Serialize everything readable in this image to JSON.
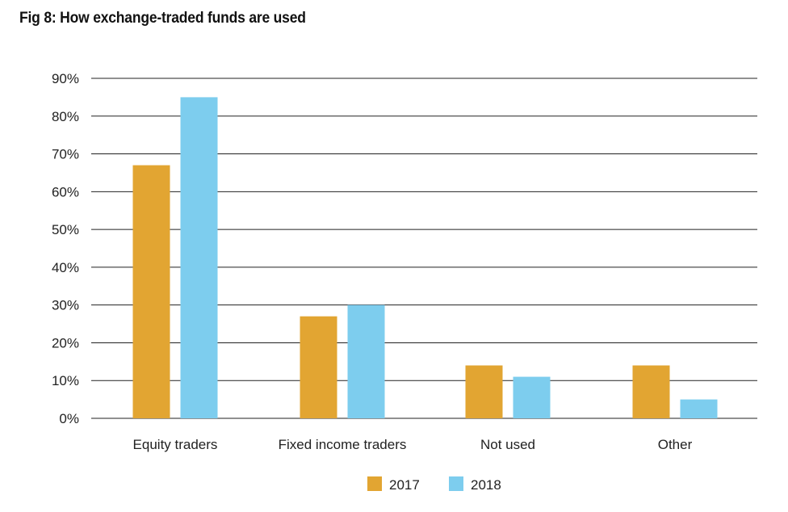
{
  "colors": {
    "series_2017": "#E2A532",
    "series_2018": "#7DCDEE",
    "gridline": "#222222",
    "text": "#222222"
  },
  "chart_data": {
    "type": "bar",
    "title": "Fig 8: How exchange-traded funds are used",
    "xlabel": "",
    "ylabel": "",
    "categories": [
      "Equity traders",
      "Fixed income traders",
      "Not used",
      "Other"
    ],
    "series": [
      {
        "name": "2017",
        "values": [
          67,
          27,
          14,
          14
        ]
      },
      {
        "name": "2018",
        "values": [
          85,
          30,
          11,
          5
        ]
      }
    ],
    "ylim": [
      0,
      90
    ],
    "yticks": [
      0,
      10,
      20,
      30,
      40,
      50,
      60,
      70,
      80,
      90
    ],
    "ytick_labels": [
      "0%",
      "10%",
      "20%",
      "30%",
      "40%",
      "50%",
      "60%",
      "70%",
      "80%",
      "90%"
    ],
    "grid": true,
    "legend_position": "bottom-center"
  }
}
